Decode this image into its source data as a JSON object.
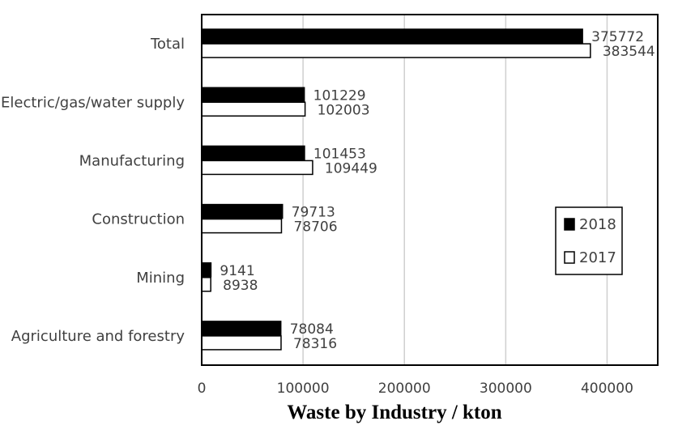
{
  "chart_data": {
    "type": "bar",
    "orientation": "horizontal",
    "categories": [
      "Agriculture and forestry",
      "Mining",
      "Construction",
      "Manufacturing",
      "Electric/gas/water supply",
      "Total"
    ],
    "series": [
      {
        "name": "2018",
        "values": [
          78084,
          9141,
          79713,
          101453,
          101229,
          375772
        ],
        "color": "#000000"
      },
      {
        "name": "2017",
        "values": [
          78316,
          8938,
          78706,
          109449,
          102003,
          383544
        ],
        "color": "#ffffff"
      }
    ],
    "xlabel": "Waste by Industry / kton",
    "xlim": [
      0,
      450000
    ],
    "xticks": [
      0,
      100000,
      200000,
      300000,
      400000
    ],
    "xtick_labels": [
      "0",
      "100000",
      "200000",
      "300000",
      "400000"
    ],
    "grid": "vertical",
    "legend_position": "right"
  }
}
